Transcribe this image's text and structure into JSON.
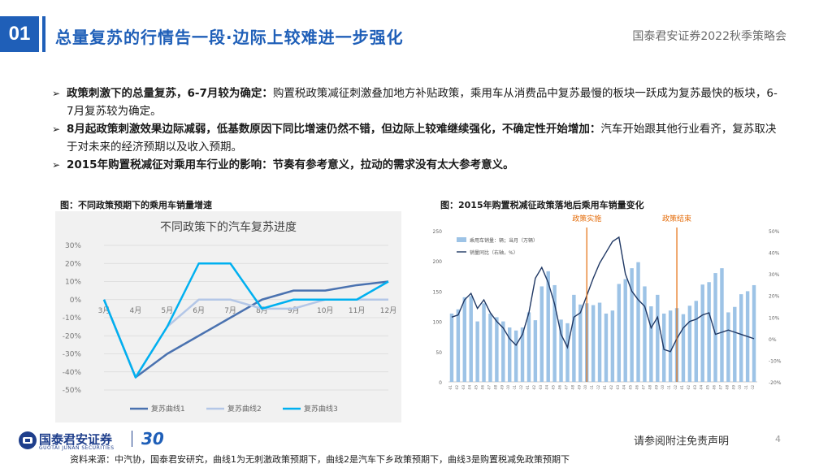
{
  "header": {
    "badge": "01",
    "title": "总量复苏的行情告一段·边际上较难进一步强化",
    "right": "国泰君安证券2022秋季策略会"
  },
  "bullets": [
    {
      "bold": "政策刺激下的总量复苏，6-7月较为确定：",
      "text": "购置税政策减征刺激叠加地方补贴政策，乘用车从消费品中复苏最慢的板块一跃成为复苏最快的板块，6-7月复苏较为确定。"
    },
    {
      "bold": "8月起政策刺激效果边际减弱，低基数原因下同比增速仍然不错，但边际上较难继续强化，不确定性开始增加：",
      "text": "汽车开始跟其他行业看齐，复苏取决于对未来的经济预期以及收入预期。"
    },
    {
      "bold": "2015年购置税减征对乘用车行业的影响：节奏有参考意义，拉动的需求没有太大参考意义。",
      "text": ""
    }
  ],
  "left_caption": "图：不同政策预期下的乘用车销量增速",
  "right_caption": "图：2015年购置税减征政策落地后乘用车销量变化",
  "chart_data": [
    {
      "type": "line",
      "title": "不同政策下的汽车复苏进度",
      "categories": [
        "3月",
        "4月",
        "5月",
        "6月",
        "7月",
        "8月",
        "9月",
        "10月",
        "11月",
        "12月"
      ],
      "y_ticks": [
        "30%",
        "20%",
        "10%",
        "0%",
        "-10%",
        "-20%",
        "-30%",
        "-40%",
        "-50%"
      ],
      "ylim": [
        -50,
        30
      ],
      "series": [
        {
          "name": "复苏曲线1",
          "color": "#4a72b0",
          "values": [
            0,
            -43,
            -30,
            -20,
            -10,
            0,
            5,
            5,
            8,
            10
          ]
        },
        {
          "name": "复苏曲线2",
          "color": "#b4c7e7",
          "values": [
            0,
            -43,
            -15,
            0,
            0,
            -5,
            -5,
            0,
            0,
            0
          ]
        },
        {
          "name": "复苏曲线3",
          "color": "#00b0f0",
          "values": [
            0,
            -43,
            -15,
            20,
            20,
            -5,
            0,
            0,
            0,
            10
          ]
        }
      ],
      "grid": true,
      "legend": "bottom"
    },
    {
      "type": "bar",
      "annotations": [
        {
          "text": "政策实施",
          "color": "#e46c0a"
        },
        {
          "text": "政策结束",
          "color": "#e46c0a"
        }
      ],
      "legend_items": [
        "乘用车销量：辆；当月（万辆）",
        "销量同比（右轴，%）"
      ],
      "y_left_ticks": [
        "250",
        "200",
        "150",
        "100",
        "50",
        "0"
      ],
      "y_right_ticks": [
        "50%",
        "40%",
        "30%",
        "20%",
        "10%",
        "0%",
        "-10%",
        "-20%"
      ],
      "ylim_left": [
        0,
        250
      ],
      "ylim_right": [
        -20,
        50
      ],
      "x_tick_labels": [
        "2014-01",
        "2014-02",
        "2014-03",
        "2014-04",
        "2014-05",
        "2014-06",
        "2014-07",
        "2014-08",
        "2014-09",
        "2014-10",
        "2014-11",
        "2014-12",
        "2015-01",
        "2015-02",
        "2015-03",
        "2015-04",
        "2015-05",
        "2015-06",
        "2015-07",
        "2015-08",
        "2015-09",
        "2015-10",
        "2015-11",
        "2015-12",
        "2016-01",
        "2016-02",
        "2016-03",
        "2016-04",
        "2016-05",
        "2016-06",
        "2016-07",
        "2016-08",
        "2016-09",
        "2016-10",
        "2016-11",
        "2016-12",
        "2017-01",
        "2017-02",
        "2017-03",
        "2017-04",
        "2017-05",
        "2017-06",
        "2017-07",
        "2017-08",
        "2017-09",
        "2017-10",
        "2017-11",
        "2017-12"
      ],
      "bars": [
        113,
        120,
        140,
        142,
        100,
        130,
        113,
        107,
        100,
        90,
        85,
        90,
        115,
        102,
        158,
        183,
        160,
        103,
        97,
        144,
        128,
        130,
        127,
        131,
        113,
        118,
        162,
        170,
        188,
        198,
        158,
        125,
        144,
        113,
        118,
        122,
        112,
        126,
        134,
        161,
        165,
        180,
        188,
        115,
        124,
        145,
        150,
        160
      ],
      "line": [
        10,
        11,
        18,
        21,
        14,
        18,
        12,
        8,
        5,
        0,
        -3,
        2,
        12,
        28,
        33,
        26,
        16,
        2,
        -4,
        10,
        12,
        20,
        28,
        35,
        40,
        45,
        47,
        30,
        22,
        18,
        15,
        5,
        10,
        -5,
        -6,
        0,
        5,
        8,
        9,
        11,
        12,
        2,
        3,
        4,
        3,
        2,
        1,
        0
      ]
    }
  ],
  "footer": {
    "logo_cn": "国泰君安证券",
    "logo_en": "GUOTAI JUNAN SECURITIES",
    "logo_30": "30",
    "disclaimer": "请参阅附注免责声明",
    "page": "4",
    "source_note": "资料来源：中汽协，国泰君安研究，曲线1为无刺激政策预期下，曲线2是汽车下乡政策预期下，曲线3是购置税减免政策预期下"
  },
  "colors": {
    "brand": "#1f5fb8",
    "accent_orange": "#e46c0a"
  }
}
